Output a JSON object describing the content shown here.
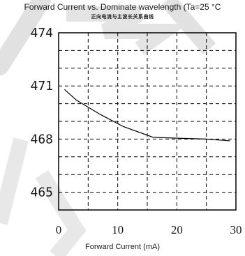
{
  "chart_data": {
    "type": "line",
    "title": "Forward Current vs. Dominate wavelength (Ta=25 °C",
    "subtitle": "正向电流与主波长关系曲线",
    "xlabel": "Forward Current (mA)",
    "ylabel": "",
    "xlim": [
      0,
      30
    ],
    "ylim": [
      464,
      474
    ],
    "x_ticks": [
      0,
      10,
      20,
      30
    ],
    "y_ticks": [
      465,
      468,
      471,
      474
    ],
    "x_grid": [
      5,
      10,
      15,
      20,
      25
    ],
    "y_grid": [
      465,
      466,
      467,
      468,
      469,
      470,
      471,
      472,
      473
    ],
    "grid": "dashed",
    "series": [
      {
        "color": "#000000",
        "x": [
          1,
          3,
          7,
          11,
          16,
          20,
          25,
          29
        ],
        "y": [
          470.8,
          470.2,
          469.4,
          468.7,
          468.1,
          468.05,
          468.0,
          467.9
        ]
      }
    ]
  },
  "colors": {
    "axis": "#000000",
    "watermark": "#d8d8d8"
  }
}
